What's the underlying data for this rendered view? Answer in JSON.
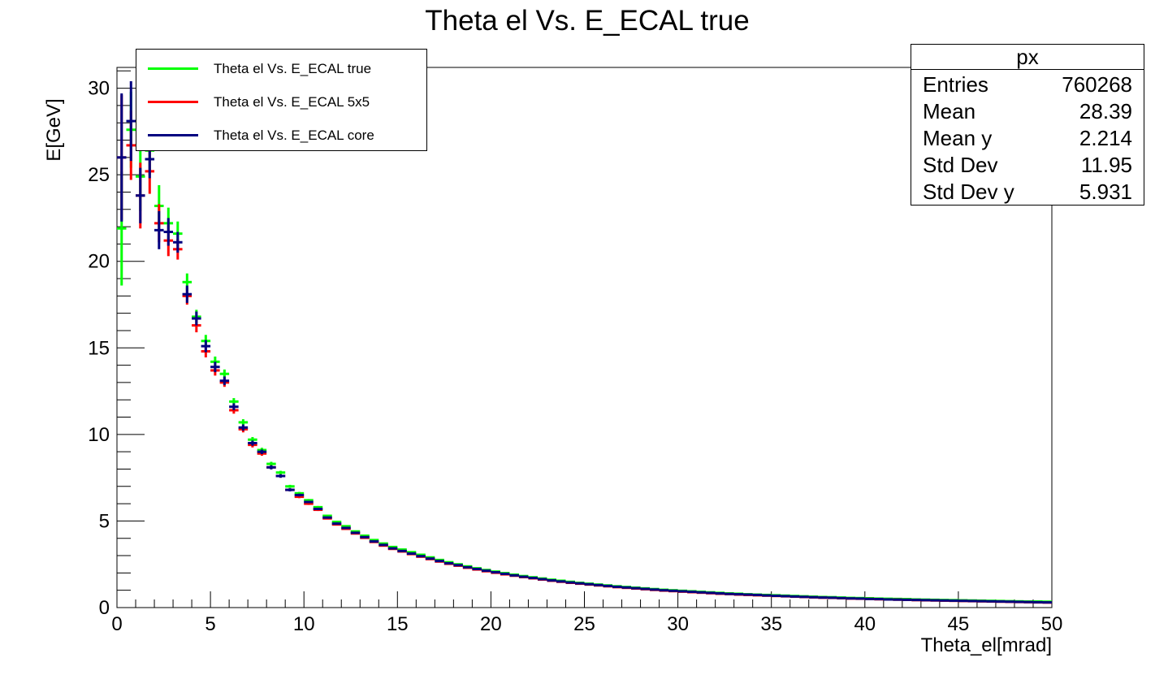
{
  "chart_data": {
    "type": "line",
    "title": "Theta el Vs. E_ECAL true",
    "xlabel": "Theta_el[mrad]",
    "ylabel": "E[GeV]",
    "xlim": [
      0,
      50
    ],
    "ylim": [
      0,
      31.2
    ],
    "x_ticks": [
      "0",
      "5",
      "10",
      "15",
      "20",
      "25",
      "30",
      "35",
      "40",
      "45",
      "50"
    ],
    "y_ticks": [
      "0",
      "5",
      "10",
      "15",
      "20",
      "25",
      "30"
    ],
    "grid": false,
    "legend_position": "top-left",
    "x": [
      0.25,
      0.75,
      1.25,
      1.75,
      2.25,
      2.75,
      3.25,
      3.75,
      4.25,
      4.75,
      5.25,
      5.75,
      6.25,
      6.75,
      7.25,
      7.75,
      8.25,
      8.75,
      9.25,
      9.75,
      10.25,
      10.75,
      11.25,
      11.75,
      12.25,
      12.75,
      13.25,
      13.75,
      14.25,
      14.75,
      15.25,
      15.75,
      16.25,
      16.75,
      17.25,
      17.75,
      18.25,
      18.75,
      19.25,
      19.75,
      20.25,
      20.75,
      21.25,
      21.75,
      22.25,
      22.75,
      23.25,
      23.75,
      24.25,
      24.75,
      25.25,
      25.75,
      26.25,
      26.75,
      27.25,
      27.75,
      28.25,
      28.75,
      29.25,
      29.75,
      30.25,
      30.75,
      31.25,
      31.75,
      32.25,
      32.75,
      33.25,
      33.75,
      34.25,
      34.75,
      35.25,
      35.75,
      36.25,
      36.75,
      37.25,
      37.75,
      38.25,
      38.75,
      39.25,
      39.75,
      40.25,
      40.75,
      41.25,
      41.75,
      42.25,
      42.75,
      43.25,
      43.75,
      44.25,
      44.75,
      45.25,
      45.75,
      46.25,
      46.75,
      47.25,
      47.75,
      48.25,
      48.75,
      49.25,
      49.75
    ],
    "series": [
      {
        "name": "Theta el Vs. E_ECAL true",
        "color": "#00ff00",
        "y": [
          21.9,
          27.6,
          24.9,
          26.4,
          23.2,
          22.2,
          21.6,
          18.8,
          16.8,
          15.4,
          14.2,
          13.5,
          11.9,
          10.7,
          9.7,
          9.1,
          8.3,
          7.8,
          7.0,
          6.6,
          6.2,
          5.8,
          5.3,
          4.95,
          4.7,
          4.4,
          4.15,
          3.9,
          3.7,
          3.5,
          3.35,
          3.2,
          3.05,
          2.9,
          2.75,
          2.62,
          2.5,
          2.38,
          2.27,
          2.17,
          2.08,
          1.99,
          1.9,
          1.82,
          1.75,
          1.68,
          1.61,
          1.55,
          1.49,
          1.43,
          1.38,
          1.33,
          1.28,
          1.23,
          1.19,
          1.15,
          1.11,
          1.07,
          1.03,
          1.0,
          0.97,
          0.94,
          0.91,
          0.88,
          0.85,
          0.82,
          0.8,
          0.77,
          0.75,
          0.73,
          0.71,
          0.69,
          0.67,
          0.65,
          0.63,
          0.61,
          0.6,
          0.58,
          0.56,
          0.55,
          0.54,
          0.52,
          0.51,
          0.5,
          0.49,
          0.47,
          0.46,
          0.45,
          0.44,
          0.43,
          0.42,
          0.41,
          0.4,
          0.39,
          0.38,
          0.37,
          0.36,
          0.35,
          0.35,
          0.34
        ],
        "err": [
          3.3,
          2.2,
          2.0,
          1.4,
          1.2,
          0.9,
          0.7,
          0.5,
          0.4,
          0.35,
          0.3,
          0.25,
          0.2,
          0.18,
          0.15,
          0.13,
          0.12,
          0.1,
          0.09,
          0.08,
          0.07,
          0.07,
          0.06,
          0.06,
          0.05,
          0.05,
          0.05,
          0.04,
          0.04,
          0.04,
          0.04,
          0.04,
          0.03,
          0.03,
          0.03,
          0.03,
          0.03,
          0.03,
          0.03,
          0.03,
          0.03,
          0.03,
          0.03,
          0.03,
          0.03,
          0.03,
          0.03,
          0.03,
          0.03,
          0.03,
          0.03,
          0.03,
          0.03,
          0.03,
          0.03,
          0.03,
          0.03,
          0.03,
          0.03,
          0.03,
          0.03,
          0.03,
          0.03,
          0.03,
          0.03,
          0.03,
          0.03,
          0.03,
          0.03,
          0.03,
          0.03,
          0.03,
          0.03,
          0.03,
          0.03,
          0.03,
          0.03,
          0.03,
          0.03,
          0.03,
          0.03,
          0.03,
          0.03,
          0.03,
          0.03,
          0.03,
          0.03,
          0.03,
          0.03,
          0.03,
          0.03,
          0.03,
          0.03,
          0.03,
          0.03,
          0.03,
          0.03,
          0.03,
          0.03,
          0.03
        ]
      },
      {
        "name": "Theta el Vs. E_ECAL 5x5",
        "color": "#ff0000",
        "y": [
          26.0,
          26.7,
          23.8,
          25.2,
          22.2,
          21.2,
          20.7,
          18.0,
          16.3,
          14.8,
          13.7,
          13.0,
          11.4,
          10.3,
          9.4,
          8.9,
          8.1,
          7.6,
          6.8,
          6.4,
          6.0,
          5.65,
          5.15,
          4.8,
          4.55,
          4.28,
          4.03,
          3.79,
          3.58,
          3.39,
          3.24,
          3.09,
          2.94,
          2.8,
          2.66,
          2.53,
          2.42,
          2.3,
          2.2,
          2.1,
          2.01,
          1.92,
          1.84,
          1.76,
          1.69,
          1.62,
          1.55,
          1.49,
          1.43,
          1.38,
          1.33,
          1.28,
          1.23,
          1.18,
          1.14,
          1.1,
          1.06,
          1.02,
          0.98,
          0.95,
          0.92,
          0.89,
          0.86,
          0.83,
          0.8,
          0.78,
          0.75,
          0.73,
          0.71,
          0.69,
          0.67,
          0.65,
          0.63,
          0.61,
          0.59,
          0.57,
          0.56,
          0.54,
          0.52,
          0.51,
          0.5,
          0.48,
          0.47,
          0.46,
          0.45,
          0.43,
          0.42,
          0.41,
          0.4,
          0.39,
          0.38,
          0.37,
          0.36,
          0.35,
          0.34,
          0.33,
          0.32,
          0.31,
          0.3,
          0.29
        ],
        "err": [
          3.6,
          2.0,
          1.9,
          1.3,
          1.1,
          0.9,
          0.6,
          0.5,
          0.4,
          0.35,
          0.3,
          0.25,
          0.2,
          0.18,
          0.15,
          0.13,
          0.12,
          0.1,
          0.09,
          0.08,
          0.07,
          0.07,
          0.06,
          0.06,
          0.05,
          0.05,
          0.05,
          0.04,
          0.04,
          0.04,
          0.04,
          0.04,
          0.03,
          0.03,
          0.03,
          0.03,
          0.03,
          0.03,
          0.03,
          0.03,
          0.03,
          0.03,
          0.03,
          0.03,
          0.03,
          0.03,
          0.03,
          0.03,
          0.03,
          0.03,
          0.03,
          0.03,
          0.03,
          0.03,
          0.03,
          0.03,
          0.03,
          0.03,
          0.03,
          0.03,
          0.03,
          0.03,
          0.03,
          0.03,
          0.03,
          0.03,
          0.03,
          0.03,
          0.03,
          0.03,
          0.03,
          0.03,
          0.03,
          0.03,
          0.03,
          0.03,
          0.03,
          0.03,
          0.03,
          0.03,
          0.03,
          0.03,
          0.03,
          0.03,
          0.03,
          0.03,
          0.03,
          0.03,
          0.03,
          0.03,
          0.03,
          0.03,
          0.03,
          0.03,
          0.03,
          0.03,
          0.03,
          0.03,
          0.03,
          0.03
        ]
      },
      {
        "name": "Theta el Vs. E_ECAL core",
        "color": "#000080",
        "y": [
          26.0,
          28.1,
          23.8,
          25.9,
          21.8,
          21.7,
          21.1,
          18.1,
          16.7,
          15.1,
          13.9,
          13.1,
          11.6,
          10.4,
          9.5,
          9.0,
          8.1,
          7.6,
          6.8,
          6.5,
          6.1,
          5.7,
          5.2,
          4.85,
          4.6,
          4.32,
          4.07,
          3.82,
          3.62,
          3.42,
          3.27,
          3.12,
          2.97,
          2.83,
          2.69,
          2.56,
          2.45,
          2.33,
          2.23,
          2.13,
          2.04,
          1.95,
          1.86,
          1.78,
          1.71,
          1.64,
          1.57,
          1.51,
          1.45,
          1.4,
          1.35,
          1.3,
          1.25,
          1.2,
          1.16,
          1.12,
          1.08,
          1.04,
          1.0,
          0.97,
          0.94,
          0.91,
          0.88,
          0.85,
          0.82,
          0.79,
          0.77,
          0.75,
          0.73,
          0.7,
          0.68,
          0.66,
          0.64,
          0.62,
          0.6,
          0.58,
          0.57,
          0.55,
          0.53,
          0.52,
          0.5,
          0.49,
          0.47,
          0.46,
          0.45,
          0.44,
          0.43,
          0.42,
          0.41,
          0.4,
          0.39,
          0.38,
          0.37,
          0.36,
          0.35,
          0.34,
          0.33,
          0.32,
          0.31,
          0.3
        ],
        "err": [
          3.7,
          2.3,
          1.6,
          1.1,
          1.1,
          0.8,
          0.6,
          0.5,
          0.4,
          0.35,
          0.3,
          0.25,
          0.2,
          0.18,
          0.15,
          0.13,
          0.12,
          0.1,
          0.09,
          0.08,
          0.07,
          0.07,
          0.06,
          0.06,
          0.05,
          0.05,
          0.05,
          0.04,
          0.04,
          0.04,
          0.04,
          0.04,
          0.03,
          0.03,
          0.03,
          0.03,
          0.03,
          0.03,
          0.03,
          0.03,
          0.03,
          0.03,
          0.03,
          0.03,
          0.03,
          0.03,
          0.03,
          0.03,
          0.03,
          0.03,
          0.03,
          0.03,
          0.03,
          0.03,
          0.03,
          0.03,
          0.03,
          0.03,
          0.03,
          0.03,
          0.03,
          0.03,
          0.03,
          0.03,
          0.03,
          0.03,
          0.03,
          0.03,
          0.03,
          0.03,
          0.03,
          0.03,
          0.03,
          0.03,
          0.03,
          0.03,
          0.03,
          0.03,
          0.03,
          0.03,
          0.03,
          0.03,
          0.03,
          0.03,
          0.03,
          0.03,
          0.03,
          0.03,
          0.03,
          0.03,
          0.03,
          0.03,
          0.03,
          0.03,
          0.03,
          0.03,
          0.03,
          0.03,
          0.03,
          0.03
        ]
      }
    ]
  },
  "stats": {
    "title": "px",
    "rows": [
      {
        "label": "Entries",
        "value": "760268"
      },
      {
        "label": "Mean",
        "value": "28.39"
      },
      {
        "label": "Mean y",
        "value": "2.214"
      },
      {
        "label": "Std Dev",
        "value": "11.95"
      },
      {
        "label": "Std Dev y",
        "value": "5.931"
      }
    ]
  }
}
